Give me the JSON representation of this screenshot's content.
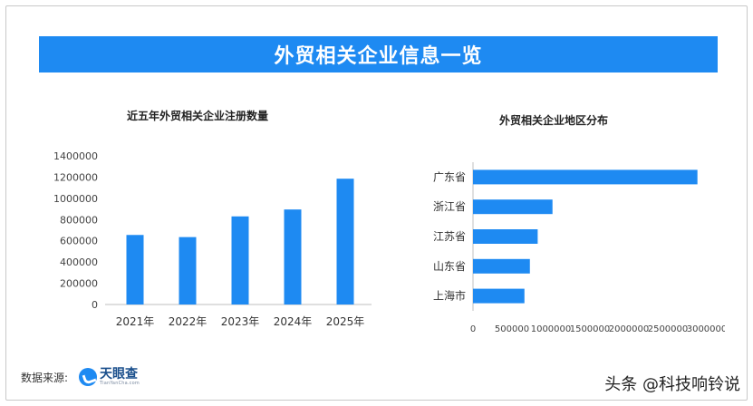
{
  "banner": {
    "title": "外贸相关企业信息一览"
  },
  "charts": [
    {
      "title": "近五年外贸相关企业注册数量",
      "type": "bar",
      "categories": [
        "2021年",
        "2022年",
        "2023年",
        "2024年",
        "2025年"
      ],
      "values": [
        655000,
        635000,
        830000,
        895000,
        1185000
      ],
      "yticks": [
        0,
        200000,
        400000,
        600000,
        800000,
        1000000,
        1200000,
        1400000
      ],
      "ylim": [
        0,
        1400000
      ],
      "grid": false,
      "color": "#1e8af2"
    },
    {
      "title": "外贸相关企业地区分布",
      "type": "bar",
      "orientation": "horizontal",
      "categories": [
        "广东省",
        "浙江省",
        "江苏省",
        "山东省",
        "上海市"
      ],
      "values": [
        2880000,
        1020000,
        830000,
        730000,
        660000
      ],
      "xticks": [
        0,
        500000,
        1000000,
        1500000,
        2000000,
        2500000,
        3000000
      ],
      "xlim": [
        0,
        3000000
      ],
      "grid": false,
      "color": "#1e8af2"
    }
  ],
  "footer": {
    "source_label": "数据来源:",
    "logo_name": "天眼查",
    "logo_sub": "TianYanCha.com",
    "watermark": "头条 @科技响铃说"
  }
}
